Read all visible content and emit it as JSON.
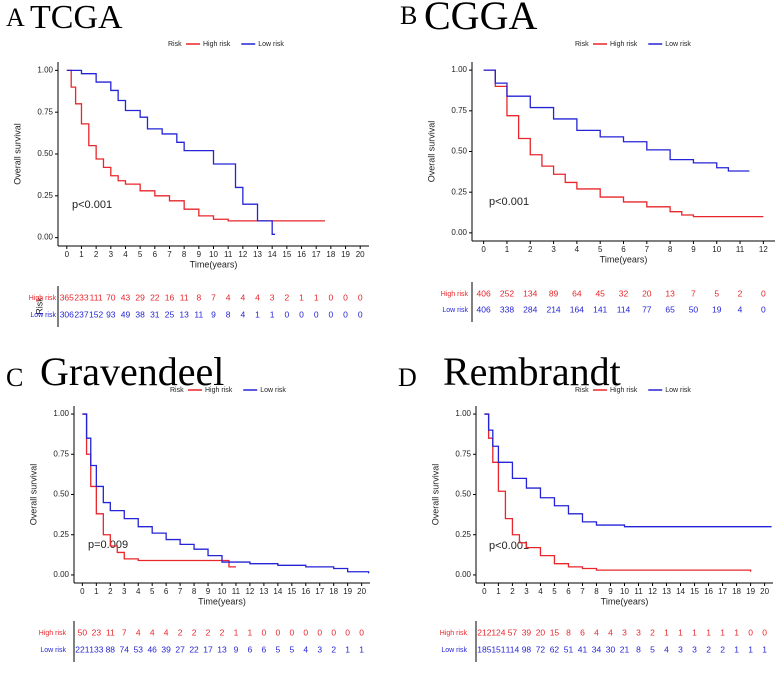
{
  "chart_data": [
    {
      "type": "line",
      "label": "A",
      "title": "TCGA",
      "legend_title": "Risk",
      "xlabel": "Time(years)",
      "ylabel": "Overall survival",
      "annotation": "p<0.001",
      "xlim": [
        -0.6,
        20.6
      ],
      "ylim": [
        -0.05,
        1.05
      ],
      "xticks": [
        0,
        1,
        2,
        3,
        4,
        5,
        6,
        7,
        8,
        9,
        10,
        11,
        12,
        13,
        14,
        15,
        16,
        17,
        18,
        19,
        20
      ],
      "yticks": [
        {
          "value": 0,
          "label": "0.00"
        },
        0.25,
        {
          "value": 0.5,
          "label": "0.50"
        },
        0.75,
        {
          "value": 1,
          "label": "1.00"
        }
      ],
      "series": [
        {
          "name": "High risk",
          "color": "#e8262b",
          "x": [
            0,
            0.3,
            0.6,
            1,
            1.5,
            2,
            2.5,
            3,
            3.5,
            4,
            5,
            6,
            7,
            8,
            9,
            10,
            11,
            17.6
          ],
          "values": [
            1,
            0.9,
            0.8,
            0.68,
            0.55,
            0.47,
            0.42,
            0.37,
            0.34,
            0.32,
            0.28,
            0.25,
            0.22,
            0.17,
            0.13,
            0.11,
            0.1,
            0.1
          ]
        },
        {
          "name": "Low risk",
          "color": "#2424d6",
          "x": [
            0,
            1,
            2,
            3,
            3.5,
            4,
            5,
            5.5,
            6.5,
            7.5,
            8,
            9,
            10,
            11,
            11.5,
            12,
            13,
            14,
            14.2
          ],
          "values": [
            1,
            0.98,
            0.93,
            0.88,
            0.82,
            0.76,
            0.72,
            0.65,
            0.62,
            0.57,
            0.52,
            0.52,
            0.44,
            0.44,
            0.3,
            0.2,
            0.1,
            0.02,
            0.02
          ]
        }
      ],
      "risk_table": {
        "title": "Risk",
        "rows": [
          {
            "name": "High risk",
            "values": [
              365,
              233,
              111,
              70,
              43,
              29,
              22,
              16,
              11,
              8,
              7,
              4,
              4,
              4,
              3,
              2,
              1,
              1,
              0,
              0,
              0
            ]
          },
          {
            "name": "Low risk",
            "values": [
              306,
              237,
              152,
              93,
              49,
              38,
              31,
              25,
              13,
              11,
              9,
              8,
              4,
              1,
              1,
              0,
              0,
              0,
              0,
              0,
              0
            ]
          }
        ]
      }
    },
    {
      "type": "line",
      "label": "B",
      "title": "CGGA",
      "legend_title": "Risk",
      "xlabel": "Time(years)",
      "ylabel": "Overall survival",
      "annotation": "p<0.001",
      "xlim": [
        -0.5,
        12.5
      ],
      "ylim": [
        -0.05,
        1.05
      ],
      "xticks": [
        0,
        1,
        2,
        3,
        4,
        5,
        6,
        7,
        8,
        9,
        10,
        11,
        12
      ],
      "yticks": [
        {
          "value": 0,
          "label": "0.00"
        },
        0.25,
        {
          "value": 0.5,
          "label": "0.50"
        },
        0.75,
        {
          "value": 1,
          "label": "1.00"
        }
      ],
      "series": [
        {
          "name": "High risk",
          "color": "#e8262b",
          "x": [
            0,
            0.5,
            1,
            1.5,
            2,
            2.5,
            3,
            3.5,
            4,
            5,
            6,
            7,
            8,
            8.5,
            9,
            12
          ],
          "values": [
            1,
            0.9,
            0.72,
            0.58,
            0.48,
            0.41,
            0.36,
            0.31,
            0.27,
            0.22,
            0.19,
            0.16,
            0.13,
            0.11,
            0.1,
            0.1
          ]
        },
        {
          "name": "Low risk",
          "color": "#2424d6",
          "x": [
            0,
            0.5,
            1,
            2,
            3,
            4,
            5,
            6,
            7,
            8,
            9,
            10,
            10.5,
            11.4
          ],
          "values": [
            1,
            0.92,
            0.84,
            0.77,
            0.7,
            0.63,
            0.59,
            0.56,
            0.51,
            0.45,
            0.43,
            0.4,
            0.38,
            0.38
          ]
        }
      ],
      "risk_table": {
        "rows": [
          {
            "name": "High risk",
            "values": [
              406,
              252,
              134,
              89,
              64,
              45,
              32,
              20,
              13,
              7,
              5,
              2,
              0
            ]
          },
          {
            "name": "Low risk",
            "values": [
              406,
              338,
              284,
              214,
              164,
              141,
              114,
              77,
              65,
              50,
              19,
              4,
              0
            ]
          }
        ]
      }
    },
    {
      "type": "line",
      "label": "C",
      "title": "Gravendeel",
      "legend_title": "Risk",
      "xlabel": "Time(years)",
      "ylabel": "Overall survival",
      "annotation": "p=0.009",
      "xlim": [
        -0.6,
        20.6
      ],
      "ylim": [
        -0.05,
        1.05
      ],
      "xticks": [
        0,
        1,
        2,
        3,
        4,
        5,
        6,
        7,
        8,
        9,
        10,
        11,
        12,
        13,
        14,
        15,
        16,
        17,
        18,
        19,
        20
      ],
      "yticks": [
        {
          "value": 0,
          "label": "0.00"
        },
        0.25,
        {
          "value": 0.5,
          "label": "0.50"
        },
        0.75,
        {
          "value": 1,
          "label": "1.00"
        }
      ],
      "series": [
        {
          "name": "High risk",
          "color": "#e8262b",
          "x": [
            0,
            0.3,
            0.6,
            1,
            1.5,
            2,
            2.5,
            3,
            4,
            10,
            10.5,
            11
          ],
          "values": [
            1,
            0.75,
            0.55,
            0.38,
            0.25,
            0.18,
            0.14,
            0.1,
            0.09,
            0.09,
            0.05,
            0.05
          ]
        },
        {
          "name": "Low risk",
          "color": "#2424d6",
          "x": [
            0,
            0.3,
            0.6,
            1,
            1.5,
            2,
            3,
            4,
            5,
            6,
            7,
            8,
            9,
            10,
            12,
            14,
            16,
            18,
            19,
            20.5
          ],
          "values": [
            1,
            0.85,
            0.68,
            0.55,
            0.45,
            0.4,
            0.35,
            0.3,
            0.26,
            0.22,
            0.19,
            0.16,
            0.12,
            0.08,
            0.07,
            0.06,
            0.05,
            0.04,
            0.02,
            0.01
          ]
        }
      ],
      "risk_table": {
        "rows": [
          {
            "name": "High risk",
            "values": [
              50,
              23,
              11,
              7,
              4,
              4,
              4,
              2,
              2,
              2,
              2,
              1,
              1,
              0,
              0,
              0,
              0,
              0,
              0,
              0,
              0
            ]
          },
          {
            "name": "Low risk",
            "values": [
              221,
              133,
              88,
              74,
              53,
              46,
              39,
              27,
              22,
              17,
              13,
              9,
              6,
              6,
              5,
              5,
              4,
              3,
              2,
              1,
              1
            ]
          }
        ]
      }
    },
    {
      "type": "line",
      "label": "D",
      "title": "Rembrandt",
      "legend_title": "Risk",
      "xlabel": "Time(years)",
      "ylabel": "Overall survival",
      "annotation": "p<0.001",
      "xlim": [
        -0.6,
        20.6
      ],
      "ylim": [
        -0.05,
        1.05
      ],
      "xticks": [
        0,
        1,
        2,
        3,
        4,
        5,
        6,
        7,
        8,
        9,
        10,
        11,
        12,
        13,
        14,
        15,
        16,
        17,
        18,
        19,
        20
      ],
      "yticks": [
        {
          "value": 0,
          "label": "0.00"
        },
        0.25,
        {
          "value": 0.5,
          "label": "0.50"
        },
        0.75,
        {
          "value": 1,
          "label": "1.00"
        }
      ],
      "series": [
        {
          "name": "High risk",
          "color": "#e8262b",
          "x": [
            0,
            0.3,
            0.6,
            1,
            1.5,
            2,
            2.5,
            3,
            4,
            5,
            6,
            7,
            8,
            19
          ],
          "values": [
            1,
            0.85,
            0.7,
            0.52,
            0.35,
            0.25,
            0.2,
            0.17,
            0.12,
            0.07,
            0.05,
            0.04,
            0.03,
            0.02
          ]
        },
        {
          "name": "Low risk",
          "color": "#2424d6",
          "x": [
            0,
            0.3,
            0.6,
            1,
            2,
            3,
            4,
            5,
            6,
            7,
            8,
            10,
            20.5
          ],
          "values": [
            1,
            0.9,
            0.8,
            0.7,
            0.6,
            0.54,
            0.48,
            0.43,
            0.38,
            0.33,
            0.31,
            0.3,
            0.3
          ]
        }
      ],
      "risk_table": {
        "rows": [
          {
            "name": "High risk",
            "values": [
              212,
              124,
              57,
              39,
              20,
              15,
              8,
              6,
              4,
              4,
              3,
              3,
              2,
              1,
              1,
              1,
              1,
              1,
              1,
              0,
              0
            ]
          },
          {
            "name": "Low risk",
            "values": [
              185,
              151,
              114,
              98,
              72,
              62,
              51,
              41,
              34,
              30,
              21,
              8,
              5,
              4,
              3,
              3,
              2,
              2,
              1,
              1,
              1
            ]
          }
        ]
      }
    }
  ]
}
